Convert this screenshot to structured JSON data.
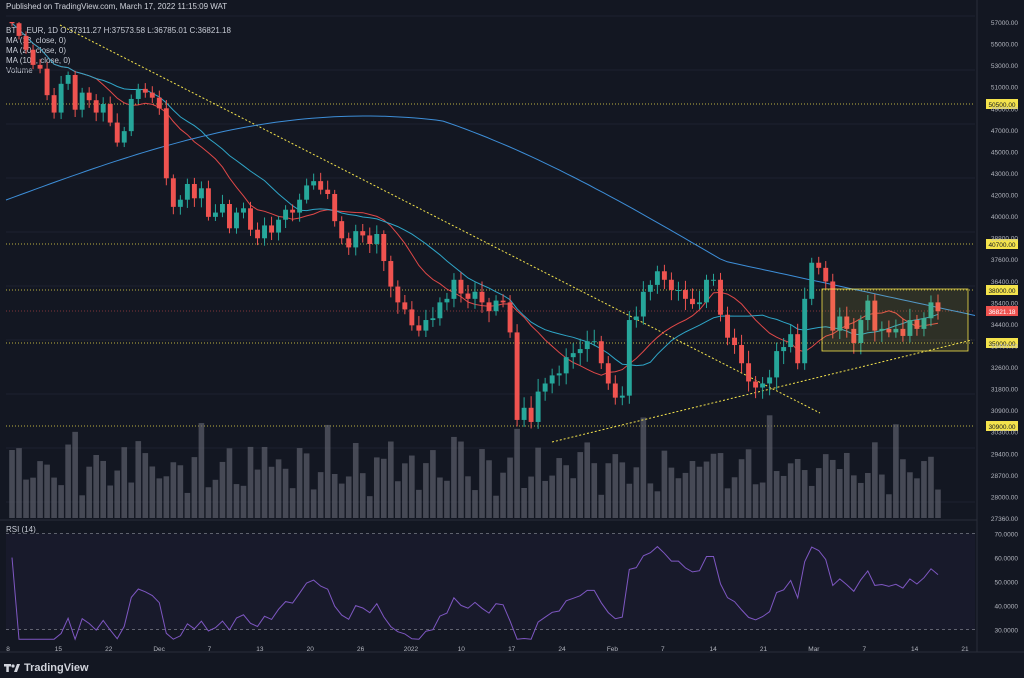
{
  "header": {
    "published": "Published on TradingView.com, March 17, 2022 11:15:09 WAT"
  },
  "legend": {
    "symbol": "BTC_EUR, 1D  O:37311.27 H:37573.58 L:36785.01 C:36821.18",
    "ma13": "MA (13, close, 0)",
    "ma20": "MA (20, close, 0)",
    "ma100": "MA (100, close, 0)",
    "volume": "Volume"
  },
  "rsi_label": "RSI (14)",
  "footer": {
    "brand": "TradingView"
  },
  "colors": {
    "up": "#26a69a",
    "down": "#ef5350",
    "ma13": "#e04848",
    "ma20": "#2fa6c8",
    "ma100": "#3d8ed8",
    "rsi": "#7e57c2",
    "trend": "#f4e34c",
    "level": "#f4e34c"
  },
  "chart_data": {
    "type": "candlestick",
    "title": "BTC_EUR, 1D",
    "x_tick_labels": [
      "8",
      "15",
      "22",
      "Dec",
      "7",
      "13",
      "20",
      "26",
      "2022",
      "10",
      "17",
      "24",
      "Feb",
      "7",
      "14",
      "21",
      "Mar",
      "7",
      "14",
      "21"
    ],
    "y_tick_labels": [
      "57000.00",
      "55000.00",
      "53000.00",
      "51000.00",
      "49000.00",
      "47000.00",
      "45000.00",
      "43000.00",
      "42000.00",
      "40000.00",
      "38800.00",
      "37600.00",
      "36400.00",
      "35400.00",
      "34400.00",
      "33400.00",
      "32600.00",
      "31800.00",
      "30900.00",
      "30300.00",
      "29400.00",
      "28700.00",
      "28000.00",
      "27360.00"
    ],
    "ylim": [
      26900,
      57200
    ],
    "price_levels": [
      {
        "label": "50500.00",
        "value": 50500
      },
      {
        "label": "40700.00",
        "value": 40700
      },
      {
        "label": "38000.00",
        "value": 38000
      },
      {
        "label": "35000.00",
        "value": 35000
      },
      {
        "label": "30900.00",
        "value": 30900
      }
    ],
    "last_price": {
      "label": "36821.18",
      "value": 36821.18
    },
    "closes": [
      56900,
      55900,
      54800,
      53600,
      53300,
      51200,
      49900,
      52100,
      52800,
      50100,
      51400,
      50800,
      49900,
      50500,
      49200,
      47800,
      48600,
      50900,
      51700,
      51400,
      51000,
      50200,
      45300,
      43300,
      43800,
      44900,
      43900,
      44600,
      42600,
      42900,
      43500,
      41800,
      42900,
      43200,
      41700,
      41100,
      42000,
      41500,
      42400,
      43100,
      42900,
      43800,
      44800,
      45100,
      44500,
      44200,
      42300,
      41100,
      40500,
      41600,
      41300,
      40700,
      41400,
      39700,
      38200,
      37300,
      36900,
      36000,
      35700,
      36300,
      36400,
      37300,
      37500,
      38600,
      37800,
      37500,
      37900,
      37300,
      36800,
      37400,
      37300,
      35600,
      31200,
      31800,
      31100,
      32600,
      33000,
      33400,
      33500,
      34300,
      34500,
      34700,
      35100,
      35100,
      34000,
      33000,
      32300,
      32400,
      36300,
      36500,
      37900,
      38300,
      39100,
      38600,
      38000,
      38000,
      37500,
      37200,
      37300,
      38600,
      38600,
      36600,
      35300,
      34900,
      34000,
      33100,
      32800,
      33000,
      33300,
      34600,
      34800,
      35500,
      34000,
      37500,
      39600,
      39300,
      38500,
      35700,
      36500,
      35800,
      35000,
      36300,
      37400,
      35700,
      35800,
      35600,
      35800,
      35400,
      36300,
      35800,
      36400,
      37300,
      36800
    ],
    "rsi": {
      "levels": [
        "70.0000",
        "60.0000",
        "50.0000",
        "40.0000",
        "30.0000"
      ],
      "upper": 70,
      "lower": 30,
      "ylim": [
        24,
        74
      ]
    },
    "volume_note": "relative volume bars"
  }
}
